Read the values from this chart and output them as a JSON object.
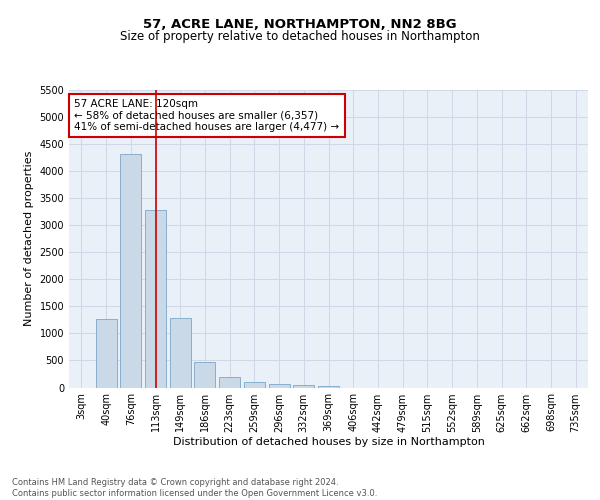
{
  "title": "57, ACRE LANE, NORTHAMPTON, NN2 8BG",
  "subtitle": "Size of property relative to detached houses in Northampton",
  "xlabel": "Distribution of detached houses by size in Northampton",
  "ylabel": "Number of detached properties",
  "bar_labels": [
    "3sqm",
    "40sqm",
    "76sqm",
    "113sqm",
    "149sqm",
    "186sqm",
    "223sqm",
    "259sqm",
    "296sqm",
    "332sqm",
    "369sqm",
    "406sqm",
    "442sqm",
    "479sqm",
    "515sqm",
    "552sqm",
    "589sqm",
    "625sqm",
    "662sqm",
    "698sqm",
    "735sqm"
  ],
  "bar_values": [
    0,
    1260,
    4320,
    3290,
    1280,
    480,
    195,
    95,
    65,
    40,
    35,
    0,
    0,
    0,
    0,
    0,
    0,
    0,
    0,
    0,
    0
  ],
  "bar_color": "#c9d9e8",
  "bar_edge_color": "#7ba7c7",
  "vline_x": 3,
  "vline_color": "#cc0000",
  "annotation_text": "57 ACRE LANE: 120sqm\n← 58% of detached houses are smaller (6,357)\n41% of semi-detached houses are larger (4,477) →",
  "annotation_box_color": "white",
  "annotation_box_edge": "#cc0000",
  "ylim": [
    0,
    5500
  ],
  "yticks": [
    0,
    500,
    1000,
    1500,
    2000,
    2500,
    3000,
    3500,
    4000,
    4500,
    5000,
    5500
  ],
  "grid_color": "#d0d8e8",
  "bg_color": "#eaf0f8",
  "footer_text": "Contains HM Land Registry data © Crown copyright and database right 2024.\nContains public sector information licensed under the Open Government Licence v3.0.",
  "title_fontsize": 9.5,
  "subtitle_fontsize": 8.5,
  "tick_fontsize": 7,
  "ylabel_fontsize": 8,
  "xlabel_fontsize": 8,
  "footer_fontsize": 6,
  "annotation_fontsize": 7.5
}
